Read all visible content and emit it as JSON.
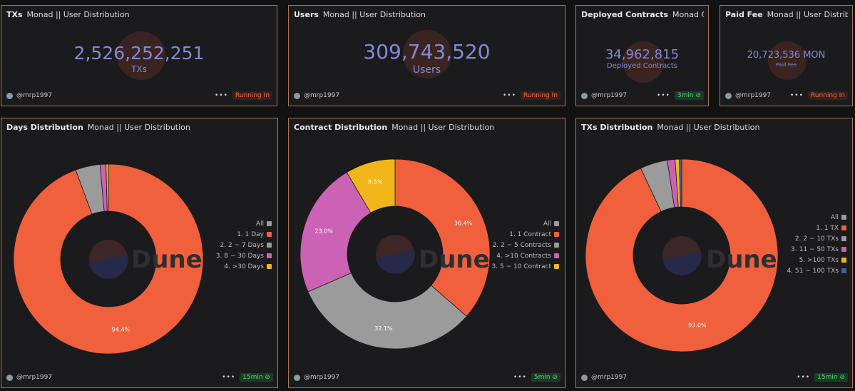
{
  "author": "@mrp1997",
  "colors": {
    "orange": "#f0603c",
    "gray": "#9b9b9b",
    "pink": "#cc62b3",
    "yellow": "#f1b61a",
    "blue": "#4b5aa5",
    "text_counter": "#8389d6"
  },
  "counters": [
    {
      "title": "TXs",
      "subtitle": "Monad || User Distribution",
      "value": "2,526,252,251",
      "label": "TXs",
      "status": "Running In"
    },
    {
      "title": "Users",
      "subtitle": "Monad || User Distribution",
      "value": "309,743,520",
      "label": "Users",
      "status": "Running In"
    },
    {
      "title": "Deployed Contracts",
      "subtitle": "Monad Contr",
      "value": "34,962,815",
      "label": "Deployed Contracts",
      "status": "3min"
    },
    {
      "title": "Paid Fee",
      "subtitle": "Monad || User Distribution",
      "value": "20,723,536 MON",
      "label": "Paid Fee",
      "status": "Running In"
    }
  ],
  "charts": [
    {
      "title": "Days Distribution",
      "subtitle": "Monad || User Distribution",
      "status": "15min",
      "watermark": "Dune",
      "legend": [
        "All",
        "1. 1 Day",
        "2. 2 ~ 7 Days",
        "3. 8 ~ 30 Days",
        "4. >30 Days"
      ]
    },
    {
      "title": "Contract Distribution",
      "subtitle": "Monad || User Distribution",
      "status": "5min",
      "watermark": "Dune",
      "legend": [
        "All",
        "1. 1 Contract",
        "2. 2 ~ 5 Contracts",
        "4. >10 Contracts",
        "3. 5 ~ 10 Contract"
      ]
    },
    {
      "title": "TXs Distribution",
      "subtitle": "Monad || User Distribution",
      "status": "15min",
      "watermark": "Dune",
      "legend": [
        "All",
        "1. 1 TX",
        "2. 2 ~ 10 TXs",
        "3. 11 ~ 50 TXs",
        "5. >100 TXs",
        "4. 51 ~ 100 TXs"
      ]
    }
  ],
  "chart_data": [
    {
      "type": "pie",
      "title": "Days Distribution",
      "categories": [
        "1. 1 Day",
        "2. 2 ~ 7 Days",
        "3. 8 ~ 30 Days",
        "4. >30 Days"
      ],
      "values": [
        94.4,
        4.2,
        1.0,
        0.4
      ],
      "colors": [
        "#f0603c",
        "#9b9b9b",
        "#cc62b3",
        "#f1b61a"
      ],
      "labels": [
        "94.4%",
        "",
        "",
        ""
      ]
    },
    {
      "type": "pie",
      "title": "Contract Distribution",
      "categories": [
        "1. 1 Contract",
        "2. 2 ~ 5 Contracts",
        "4. >10 Contracts",
        "3. 5 ~ 10 Contract"
      ],
      "values": [
        36.4,
        32.1,
        23.0,
        8.5
      ],
      "colors": [
        "#f0603c",
        "#9b9b9b",
        "#cc62b3",
        "#f1b61a"
      ],
      "labels": [
        "36.4%",
        "32.1%",
        "23.0%",
        "8.5%"
      ]
    },
    {
      "type": "pie",
      "title": "TXs Distribution",
      "categories": [
        "1. 1 TX",
        "2. 2 ~ 10 TXs",
        "3. 11 ~ 50 TXs",
        "5. >100 TXs",
        "4. 51 ~ 100 TXs"
      ],
      "values": [
        93.0,
        4.6,
        1.3,
        0.7,
        0.4
      ],
      "colors": [
        "#f0603c",
        "#9b9b9b",
        "#cc62b3",
        "#f1b61a",
        "#4b5aa5"
      ],
      "labels": [
        "93.0%",
        "",
        "",
        "",
        ""
      ]
    }
  ]
}
